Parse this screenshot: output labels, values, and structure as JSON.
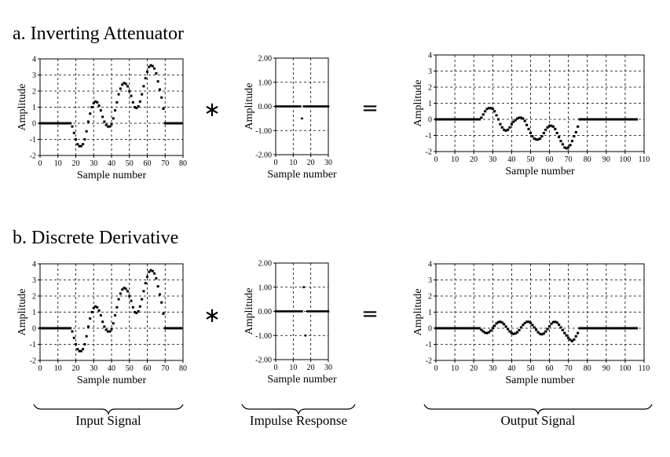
{
  "rows": [
    {
      "title": "a. Inverting Attenuator",
      "conv_symbol": "∗",
      "equals_symbol": "="
    },
    {
      "title": "b. Discrete Derivative",
      "conv_symbol": "∗",
      "equals_symbol": "="
    }
  ],
  "bottom_labels": {
    "input": "Input Signal",
    "impulse": "Impulse Response",
    "output": "Output Signal"
  },
  "chart_data": [
    {
      "id": "a-input",
      "type": "scatter",
      "xlabel": "Sample number",
      "ylabel": "Amplitude",
      "xlim": [
        0,
        80
      ],
      "ylim": [
        -2,
        4
      ],
      "xticks": [
        "0",
        "10",
        "20",
        "30",
        "40",
        "50",
        "60",
        "70",
        "80"
      ],
      "yticks": [
        "-2",
        "-1",
        "0",
        "1",
        "2",
        "3",
        "4"
      ],
      "grid": true,
      "y": [
        0,
        0,
        0,
        0,
        0,
        0,
        0,
        0,
        0,
        -0.2,
        -0.6,
        -1.0,
        -1.3,
        -1.42,
        -1.42,
        -1.3,
        -1.0,
        -0.5,
        0.1,
        0.6,
        1.0,
        1.25,
        1.35,
        1.3,
        1.1,
        0.8,
        0.4,
        0.1,
        -0.1,
        -0.2,
        -0.2,
        -0.05,
        0.3,
        0.8,
        1.3,
        1.8,
        2.15,
        2.4,
        2.5,
        2.45,
        2.3,
        2.0,
        1.7,
        1.3,
        1.0,
        0.95,
        1.05,
        1.35,
        1.8,
        2.3,
        2.8,
        3.2,
        3.5,
        3.6,
        3.55,
        3.4,
        3.1,
        2.6,
        2.1,
        1.6,
        0.9,
        0,
        0,
        0,
        0,
        0,
        0,
        0,
        0,
        0,
        0
      ],
      "x_start": 9
    },
    {
      "id": "a-impulse",
      "type": "scatter",
      "xlabel": "Sample number",
      "ylabel": "Amplitude",
      "xlim": [
        0,
        30
      ],
      "ylim": [
        -2,
        2
      ],
      "xticks": [
        "0",
        "10",
        "20",
        "30"
      ],
      "yticks": [
        "-2.00",
        "-1.00",
        "0.00",
        "1.00",
        "2.00"
      ],
      "grid": true,
      "y": [
        0,
        0,
        0,
        0,
        0,
        0,
        0,
        0,
        0,
        0,
        0,
        0,
        0,
        0,
        0,
        -0.5,
        0,
        0,
        0,
        0,
        0,
        0,
        0,
        0,
        0,
        0,
        0,
        0,
        0,
        0,
        0
      ],
      "x_start": 0
    },
    {
      "id": "a-output",
      "type": "scatter",
      "xlabel": "Sample number",
      "ylabel": "Amplitude",
      "xlim": [
        0,
        110
      ],
      "ylim": [
        -2,
        4
      ],
      "xticks": [
        "0",
        "10",
        "20",
        "30",
        "40",
        "50",
        "60",
        "70",
        "80",
        "90",
        "100",
        "110"
      ],
      "yticks": [
        "-2",
        "-1",
        "0",
        "1",
        "2",
        "3",
        "4"
      ],
      "grid": true,
      "y": [
        0,
        0,
        0,
        0,
        0,
        0,
        0,
        0,
        0,
        0,
        0,
        0,
        0,
        0,
        0,
        0,
        0,
        0,
        0,
        0,
        0,
        0,
        0,
        0,
        0.1,
        0.3,
        0.5,
        0.65,
        0.7,
        0.7,
        0.65,
        0.5,
        0.25,
        0,
        -0.3,
        -0.5,
        -0.65,
        -0.7,
        -0.65,
        -0.5,
        -0.3,
        -0.15,
        -0.05,
        0.05,
        0.1,
        0.1,
        0.05,
        -0.1,
        -0.35,
        -0.6,
        -0.85,
        -1.05,
        -1.2,
        -1.25,
        -1.25,
        -1.2,
        -1.05,
        -0.85,
        -0.65,
        -0.5,
        -0.4,
        -0.4,
        -0.45,
        -0.6,
        -0.85,
        -1.1,
        -1.35,
        -1.55,
        -1.75,
        -1.8,
        -1.75,
        -1.6,
        -1.35,
        -1.05,
        -0.8,
        -0.45,
        0,
        0,
        0,
        0,
        0,
        0,
        0,
        0,
        0,
        0,
        0,
        0,
        0,
        0,
        0,
        0,
        0,
        0,
        0,
        0,
        0,
        0,
        0,
        0,
        0,
        0,
        0,
        0,
        0,
        0,
        0
      ],
      "x_start": 0
    },
    {
      "id": "b-input",
      "type": "scatter",
      "xlabel": "Sample number",
      "ylabel": "Amplitude",
      "xlim": [
        0,
        80
      ],
      "ylim": [
        -2,
        4
      ],
      "xticks": [
        "0",
        "10",
        "20",
        "30",
        "40",
        "50",
        "60",
        "70",
        "80"
      ],
      "yticks": [
        "-2",
        "-1",
        "0",
        "1",
        "2",
        "3",
        "4"
      ],
      "grid": true,
      "y": [
        0,
        0,
        0,
        0,
        0,
        0,
        0,
        0,
        0,
        -0.2,
        -0.6,
        -1.0,
        -1.3,
        -1.42,
        -1.42,
        -1.3,
        -1.0,
        -0.5,
        0.1,
        0.6,
        1.0,
        1.25,
        1.35,
        1.3,
        1.1,
        0.8,
        0.4,
        0.1,
        -0.1,
        -0.2,
        -0.2,
        -0.05,
        0.3,
        0.8,
        1.3,
        1.8,
        2.15,
        2.4,
        2.5,
        2.45,
        2.3,
        2.0,
        1.7,
        1.3,
        1.0,
        0.95,
        1.05,
        1.35,
        1.8,
        2.3,
        2.8,
        3.2,
        3.5,
        3.6,
        3.55,
        3.4,
        3.1,
        2.6,
        2.1,
        1.6,
        0.9,
        0,
        0,
        0,
        0,
        0,
        0,
        0,
        0,
        0,
        0
      ],
      "x_start": 9
    },
    {
      "id": "b-impulse",
      "type": "scatter",
      "xlabel": "Sample number",
      "ylabel": "Amplitude",
      "xlim": [
        0,
        30
      ],
      "ylim": [
        -2,
        2
      ],
      "xticks": [
        "0",
        "10",
        "20",
        "30"
      ],
      "yticks": [
        "-2.00",
        "-1.00",
        "0.00",
        "1.00",
        "2.00"
      ],
      "grid": true,
      "y": [
        0,
        0,
        0,
        0,
        0,
        0,
        0,
        0,
        0,
        0,
        0,
        0,
        0,
        0,
        0,
        0,
        1,
        -1,
        0,
        0,
        0,
        0,
        0,
        0,
        0,
        0,
        0,
        0,
        0,
        0,
        0
      ],
      "x_start": 0
    },
    {
      "id": "b-output",
      "type": "scatter",
      "xlabel": "Sample number",
      "ylabel": "Amplitude",
      "xlim": [
        0,
        110
      ],
      "ylim": [
        -2,
        4
      ],
      "xticks": [
        "0",
        "10",
        "20",
        "30",
        "40",
        "50",
        "60",
        "70",
        "80",
        "90",
        "100",
        "110"
      ],
      "yticks": [
        "-2",
        "-1",
        "0",
        "1",
        "2",
        "3",
        "4"
      ],
      "grid": true,
      "y": [
        0,
        0,
        0,
        0,
        0,
        0,
        0,
        0,
        0,
        0,
        0,
        0,
        0,
        0,
        0,
        0,
        0,
        0,
        0,
        0,
        0,
        0,
        0,
        0,
        -0.1,
        -0.2,
        -0.28,
        -0.3,
        -0.25,
        -0.15,
        0,
        0.15,
        0.3,
        0.38,
        0.4,
        0.35,
        0.25,
        0.1,
        -0.05,
        -0.2,
        -0.3,
        -0.35,
        -0.33,
        -0.25,
        -0.12,
        0.05,
        0.2,
        0.32,
        0.4,
        0.4,
        0.33,
        0.2,
        0.05,
        -0.1,
        -0.25,
        -0.35,
        -0.38,
        -0.33,
        -0.2,
        -0.05,
        0.12,
        0.28,
        0.38,
        0.4,
        0.35,
        0.22,
        0.05,
        -0.12,
        -0.3,
        -0.45,
        -0.6,
        -0.72,
        -0.8,
        -0.7,
        -0.5,
        -0.3,
        0,
        0,
        0,
        0,
        0,
        0,
        0,
        0,
        0,
        0,
        0,
        0,
        0,
        0,
        0,
        0,
        0,
        0,
        0,
        0,
        0,
        0,
        0,
        0,
        0,
        0,
        0,
        0,
        0,
        0,
        0
      ],
      "x_start": 0
    }
  ]
}
